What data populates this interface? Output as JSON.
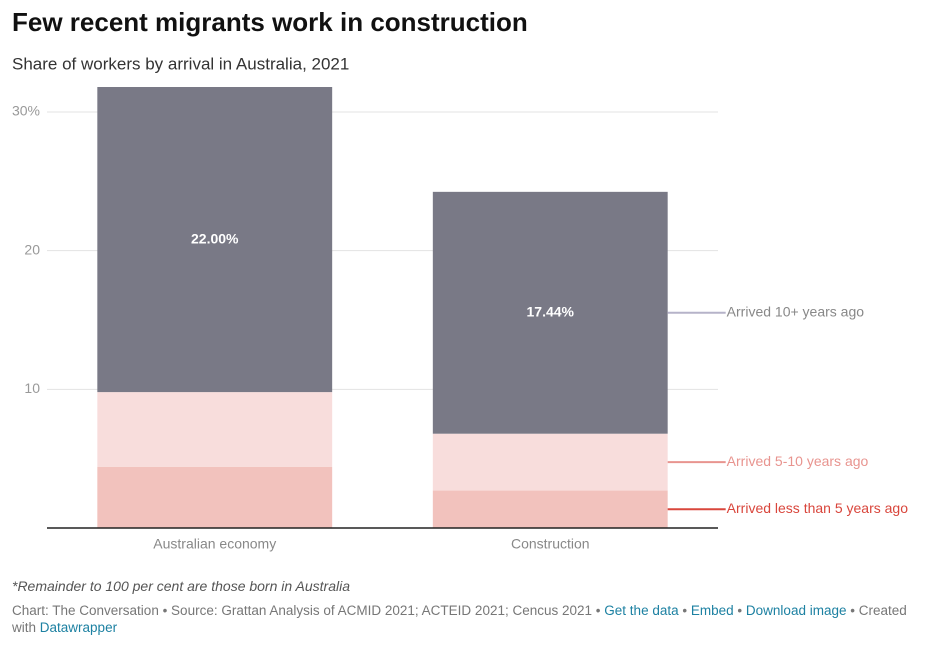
{
  "chart_data": {
    "type": "stacked_bar",
    "title": "Few recent migrants work in construction",
    "subtitle": "Share of workers by arrival in Australia, 2021",
    "categories": [
      "Australian economy",
      "Construction"
    ],
    "series": [
      {
        "name": "Arrived less than 5 years ago",
        "color": "#f2c2bd",
        "label_color": "#d9463c",
        "values": [
          4.4,
          2.7
        ]
      },
      {
        "name": "Arrived 5-10 years ago",
        "color": "#f8dddc",
        "label_color": "#e8948f",
        "values": [
          5.4,
          4.1
        ]
      },
      {
        "name": "Arrived 10+ years ago",
        "color": "#797986",
        "label_color": "#888888",
        "line_color": "#b6b3c9",
        "values": [
          22.0,
          17.44
        ],
        "value_labels": [
          "22.00%",
          "17.44%"
        ]
      }
    ],
    "ylim": [
      0,
      31.8
    ],
    "yticks": [
      {
        "value": 10,
        "label": "10"
      },
      {
        "value": 20,
        "label": "20"
      },
      {
        "value": 30,
        "label": "30%"
      }
    ],
    "grid": true,
    "note": "*Remainder to 100 per cent are those born in Australia",
    "footer": {
      "source": "Chart: The Conversation • Source: Grattan Analysis of ACMID 2021; ACTEID 2021; Cencus 2021",
      "separator": "•",
      "links": [
        "Get the data",
        "Embed",
        "Download image"
      ],
      "created": "Created with",
      "tool": "Datawrapper"
    }
  }
}
